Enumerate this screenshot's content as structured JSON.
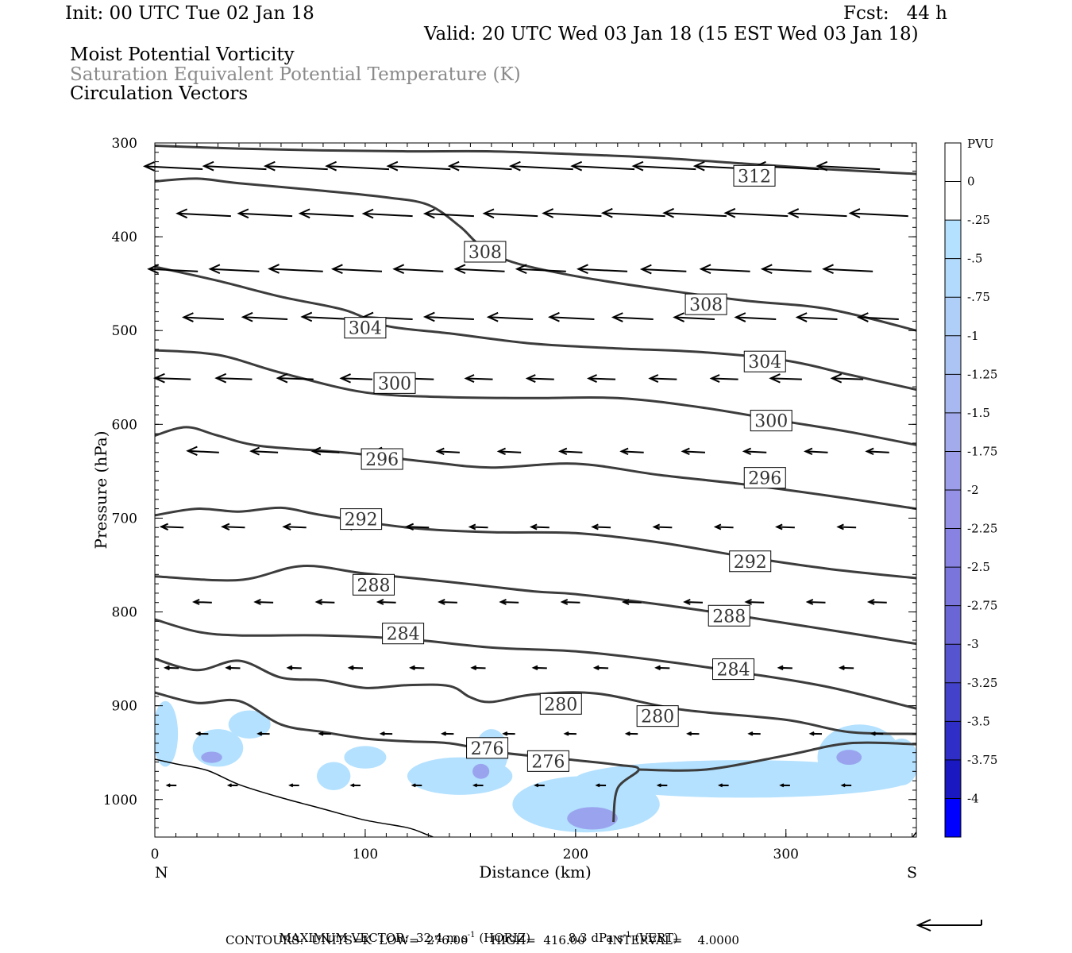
{
  "header": {
    "init": "Init: 00 UTC Tue 02 Jan 18",
    "fcst": "Fcst:   44 h",
    "valid": "Valid: 20 UTC Wed 03 Jan 18 (15 EST Wed 03 Jan 18)",
    "fields": [
      "Moist Potential Vorticity",
      "Saturation Equivalent Potential Temperature (K)",
      "Circulation Vectors"
    ]
  },
  "footer": {
    "max_vector_label": "MAXIMUM VECTOR:",
    "max_vector_horiz": "32.4 m s",
    "horiz_exp": "-1",
    "horiz_tag": "(HORIZ)",
    "max_vector_vert": "8.3 dPa s",
    "vert_exp": "-1",
    "vert_tag": "(VERT)",
    "contours": "CONTOURS:  UNITS=K  LOW=  276.00      HIGH=  416.00      INTERVAL=    4.0000"
  },
  "chart_data": {
    "type": "cross-section",
    "xlabel": "Distance (km)",
    "ylabel": "Pressure (hPa)",
    "x_end_labels": [
      "N",
      "S"
    ],
    "xlim": [
      0,
      362
    ],
    "ylim": [
      1040,
      300
    ],
    "x_ticks": [
      0,
      100,
      200,
      300
    ],
    "y_ticks": [
      300,
      400,
      500,
      600,
      700,
      800,
      900,
      1000
    ],
    "colorbar": {
      "title": "PVU",
      "levels": [
        "0",
        "-.25",
        "-.5",
        "-.75",
        "-1",
        "-1.25",
        "-1.5",
        "-1.75",
        "-2",
        "-2.25",
        "-2.5",
        "-2.75",
        "-3",
        "-3.25",
        "-3.5",
        "-3.75",
        "-4"
      ],
      "colors": [
        "#ffffff",
        "#ffffff",
        "#b3e1ff",
        "#b2dafc",
        "#b0cff8",
        "#acc4f4",
        "#a8b8f1",
        "#a3abed",
        "#9c9ee9",
        "#9591e6",
        "#8883e2",
        "#7a75dc",
        "#6a66d6",
        "#5754d0",
        "#4342cb",
        "#2f2ec6",
        "#1a18c0",
        "#0000ff"
      ]
    },
    "pv_color": "#b3e1ff",
    "pv_dark_color": "#9aa4ee",
    "contour_color": "#3c3c3c",
    "contours": [
      {
        "label": "312",
        "points": [
          [
            0,
            303
          ],
          [
            40,
            306
          ],
          [
            80,
            308
          ],
          [
            120,
            309
          ],
          [
            160,
            309
          ],
          [
            200,
            312
          ],
          [
            240,
            316
          ],
          [
            280,
            322
          ],
          [
            320,
            328
          ],
          [
            362,
            333
          ]
        ],
        "labels_at": [
          [
            285,
            335
          ]
        ]
      },
      {
        "label": "308",
        "points": [
          [
            0,
            341
          ],
          [
            20,
            338
          ],
          [
            40,
            343
          ],
          [
            80,
            351
          ],
          [
            110,
            358
          ],
          [
            130,
            366
          ],
          [
            145,
            389
          ],
          [
            155,
            410
          ],
          [
            170,
            427
          ],
          [
            200,
            442
          ],
          [
            240,
            456
          ],
          [
            280,
            468
          ],
          [
            320,
            477
          ],
          [
            362,
            500
          ]
        ],
        "labels_at": [
          [
            157,
            416
          ],
          [
            262,
            472
          ]
        ]
      },
      {
        "label": "304",
        "points": [
          [
            0,
            432
          ],
          [
            30,
            447
          ],
          [
            60,
            464
          ],
          [
            90,
            478
          ],
          [
            110,
            495
          ],
          [
            140,
            503
          ],
          [
            180,
            514
          ],
          [
            220,
            519
          ],
          [
            260,
            523
          ],
          [
            300,
            532
          ],
          [
            330,
            547
          ],
          [
            362,
            563
          ]
        ],
        "labels_at": [
          [
            100,
            497
          ],
          [
            290,
            533
          ]
        ]
      },
      {
        "label": "300",
        "points": [
          [
            0,
            521
          ],
          [
            30,
            526
          ],
          [
            60,
            545
          ],
          [
            100,
            566
          ],
          [
            140,
            571
          ],
          [
            180,
            572
          ],
          [
            220,
            572
          ],
          [
            260,
            582
          ],
          [
            300,
            597
          ],
          [
            330,
            608
          ],
          [
            362,
            622
          ]
        ],
        "labels_at": [
          [
            114,
            556
          ],
          [
            293,
            596
          ]
        ]
      },
      {
        "label": "296",
        "points": [
          [
            0,
            612
          ],
          [
            15,
            603
          ],
          [
            30,
            612
          ],
          [
            50,
            623
          ],
          [
            90,
            630
          ],
          [
            130,
            640
          ],
          [
            160,
            646
          ],
          [
            200,
            642
          ],
          [
            240,
            654
          ],
          [
            280,
            664
          ],
          [
            320,
            676
          ],
          [
            362,
            690
          ]
        ],
        "labels_at": [
          [
            108,
            637
          ],
          [
            290,
            657
          ]
        ]
      },
      {
        "label": "292",
        "points": [
          [
            0,
            697
          ],
          [
            20,
            690
          ],
          [
            40,
            693
          ],
          [
            60,
            689
          ],
          [
            80,
            697
          ],
          [
            120,
            710
          ],
          [
            160,
            715
          ],
          [
            200,
            716
          ],
          [
            240,
            726
          ],
          [
            280,
            741
          ],
          [
            320,
            754
          ],
          [
            362,
            764
          ]
        ],
        "labels_at": [
          [
            98,
            701
          ],
          [
            283,
            746
          ]
        ]
      },
      {
        "label": "288",
        "points": [
          [
            0,
            762
          ],
          [
            40,
            766
          ],
          [
            70,
            751
          ],
          [
            100,
            759
          ],
          [
            140,
            768
          ],
          [
            180,
            778
          ],
          [
            200,
            781
          ],
          [
            240,
            792
          ],
          [
            280,
            805
          ],
          [
            320,
            819
          ],
          [
            362,
            834
          ]
        ],
        "labels_at": [
          [
            104,
            771
          ],
          [
            273,
            804
          ]
        ]
      },
      {
        "label": "284",
        "points": [
          [
            0,
            808
          ],
          [
            20,
            821
          ],
          [
            40,
            825
          ],
          [
            80,
            825
          ],
          [
            120,
            829
          ],
          [
            160,
            838
          ],
          [
            200,
            842
          ],
          [
            240,
            852
          ],
          [
            280,
            865
          ],
          [
            320,
            880
          ],
          [
            362,
            903
          ]
        ],
        "labels_at": [
          [
            118,
            823
          ],
          [
            275,
            861
          ]
        ]
      },
      {
        "label": "280",
        "points": [
          [
            0,
            850
          ],
          [
            20,
            862
          ],
          [
            40,
            852
          ],
          [
            60,
            870
          ],
          [
            80,
            873
          ],
          [
            100,
            881
          ],
          [
            120,
            878
          ],
          [
            140,
            879
          ],
          [
            150,
            891
          ],
          [
            160,
            896
          ],
          [
            180,
            888
          ],
          [
            210,
            887
          ],
          [
            250,
            904
          ],
          [
            300,
            915
          ],
          [
            330,
            928
          ],
          [
            362,
            930
          ]
        ],
        "labels_at": [
          [
            193,
            898
          ],
          [
            239,
            911
          ]
        ]
      },
      {
        "label": "276",
        "points": [
          [
            0,
            886
          ],
          [
            20,
            897
          ],
          [
            40,
            895
          ],
          [
            60,
            920
          ],
          [
            80,
            928
          ],
          [
            100,
            935
          ],
          [
            120,
            938
          ],
          [
            140,
            940
          ],
          [
            165,
            950
          ],
          [
            200,
            958
          ],
          [
            220,
            963
          ],
          [
            230,
            968
          ],
          [
            220,
            988
          ],
          [
            218,
            1024
          ]
        ],
        "labels_at": [
          [
            158,
            945
          ],
          [
            187,
            959
          ]
        ]
      },
      {
        "label": "",
        "points": [
          [
            230,
            968
          ],
          [
            262,
            968
          ],
          [
            300,
            953
          ],
          [
            330,
            940
          ],
          [
            362,
            941
          ]
        ],
        "labels_at": []
      }
    ],
    "terrain": [
      [
        0,
        957
      ],
      [
        10,
        962
      ],
      [
        25,
        969
      ],
      [
        40,
        984
      ],
      [
        60,
        998
      ],
      [
        80,
        1010
      ],
      [
        100,
        1022
      ],
      [
        120,
        1030
      ],
      [
        130,
        1038
      ],
      [
        140,
        1046
      ],
      [
        160,
        1052
      ],
      [
        190,
        1052
      ],
      [
        220,
        1052
      ],
      [
        250,
        1052
      ],
      [
        300,
        1052
      ],
      [
        340,
        1052
      ],
      [
        355,
        1050
      ],
      [
        362,
        1035
      ]
    ],
    "vector_rows": [
      {
        "p": 328,
        "lens": [
          26,
          28,
          28,
          28,
          28,
          28,
          28,
          28,
          28,
          28,
          28,
          28
        ],
        "tilt": 3
      },
      {
        "p": 378,
        "lens": [
          24,
          24,
          24,
          22,
          22,
          24,
          26,
          28,
          28,
          28,
          26,
          26
        ],
        "tilt": 3
      },
      {
        "p": 437,
        "lens": [
          22,
          22,
          24,
          22,
          22,
          22,
          22,
          22,
          20,
          22,
          22,
          22
        ],
        "tilt": 3
      },
      {
        "p": 488,
        "lens": [
          18,
          20,
          22,
          22,
          22,
          20,
          20,
          18,
          18,
          18,
          18,
          18
        ],
        "tilt": 3
      },
      {
        "p": 552,
        "lens": [
          16,
          16,
          16,
          14,
          14,
          12,
          12,
          12,
          12,
          12,
          14,
          14
        ],
        "tilt": 2
      },
      {
        "p": 630,
        "lens": [
          14,
          12,
          12,
          12,
          10,
          10,
          10,
          10,
          10,
          10,
          10,
          10
        ],
        "tilt": 3
      },
      {
        "p": 710,
        "lens": [
          10,
          10,
          10,
          10,
          10,
          8,
          8,
          8,
          8,
          8,
          8,
          8
        ],
        "tilt": 2
      },
      {
        "p": 790,
        "lens": [
          8,
          8,
          8,
          8,
          8,
          8,
          8,
          8,
          8,
          8,
          8,
          8
        ],
        "tilt": 2
      },
      {
        "p": 860,
        "lens": [
          6,
          6,
          6,
          6,
          6,
          6,
          6,
          6,
          6,
          6,
          6,
          6
        ],
        "tilt": 2
      },
      {
        "p": 930,
        "lens": [
          5,
          5,
          5,
          5,
          5,
          5,
          5,
          5,
          5,
          5,
          5,
          5
        ],
        "tilt": 1
      },
      {
        "p": 985,
        "lens": [
          4,
          4,
          4,
          4,
          4,
          4,
          4,
          4,
          4,
          4,
          4,
          4
        ],
        "tilt": 1
      }
    ],
    "pv_blobs": [
      {
        "x": 5,
        "p": 930,
        "rx": 6,
        "rp": 35
      },
      {
        "x": 30,
        "p": 945,
        "rx": 12,
        "rp": 20
      },
      {
        "x": 45,
        "p": 920,
        "rx": 10,
        "rp": 15
      },
      {
        "x": 85,
        "p": 975,
        "rx": 8,
        "rp": 15
      },
      {
        "x": 100,
        "p": 955,
        "rx": 10,
        "rp": 12
      },
      {
        "x": 145,
        "p": 975,
        "rx": 25,
        "rp": 20
      },
      {
        "x": 160,
        "p": 950,
        "rx": 8,
        "rp": 25
      },
      {
        "x": 205,
        "p": 1005,
        "rx": 35,
        "rp": 30
      },
      {
        "x": 280,
        "p": 978,
        "rx": 80,
        "rp": 20
      },
      {
        "x": 335,
        "p": 955,
        "rx": 20,
        "rp": 35
      },
      {
        "x": 355,
        "p": 960,
        "rx": 8,
        "rp": 25
      }
    ],
    "pv_dark_blobs": [
      {
        "x": 27,
        "p": 955,
        "rx": 5,
        "rp": 6
      },
      {
        "x": 155,
        "p": 970,
        "rx": 4,
        "rp": 8
      },
      {
        "x": 208,
        "p": 1020,
        "rx": 12,
        "rp": 12
      },
      {
        "x": 330,
        "p": 955,
        "rx": 6,
        "rp": 8
      }
    ]
  }
}
